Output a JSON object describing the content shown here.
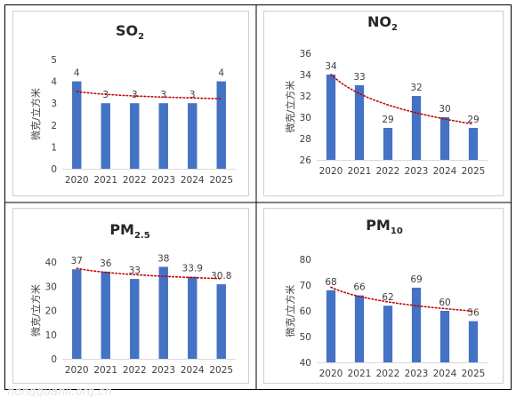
{
  "panels": [
    {
      "title_main": "SO",
      "title_sub": "2",
      "ylabel": "微克/立方米"
    },
    {
      "title_main": "NO",
      "title_sub": "2",
      "ylabel": "微克/立方米"
    },
    {
      "title_main": "PM",
      "title_sub": "2.5",
      "ylabel": "微克/立方米"
    },
    {
      "title_main": "PM",
      "title_sub": "10",
      "ylabel": "微克/立方米"
    }
  ],
  "watermark": "hongguanli.org.cn",
  "colors": {
    "bar": "#4472C4",
    "trend": "#C00000",
    "grid": "#D9D9D9",
    "text": "#404040",
    "frame": "#000000"
  },
  "chart_data": [
    {
      "type": "bar",
      "title": "SO2",
      "ylabel": "微克/立方米",
      "categories": [
        "2020",
        "2021",
        "2022",
        "2023",
        "2024",
        "2025"
      ],
      "values": [
        4,
        3,
        3,
        3,
        3,
        4
      ],
      "labels": [
        "4",
        "3",
        "3",
        "3",
        "3",
        "4"
      ],
      "ylim": [
        0,
        5
      ],
      "yticks": [
        0,
        1,
        2,
        3,
        4,
        5
      ],
      "trendline": "logarithmic",
      "grid": false
    },
    {
      "type": "bar",
      "title": "NO2",
      "ylabel": "微克/立方米",
      "categories": [
        "2020",
        "2021",
        "2022",
        "2023",
        "2024",
        "2025"
      ],
      "values": [
        34,
        33,
        29,
        32,
        30,
        29
      ],
      "labels": [
        "34",
        "33",
        "29",
        "32",
        "30",
        "29"
      ],
      "ylim": [
        26,
        36
      ],
      "yticks": [
        26,
        28,
        30,
        32,
        34,
        36
      ],
      "trendline": "logarithmic",
      "grid": false
    },
    {
      "type": "bar",
      "title": "PM2.5",
      "ylabel": "微克/立方米",
      "categories": [
        "2020",
        "2021",
        "2022",
        "2023",
        "2024",
        "2025"
      ],
      "values": [
        37,
        36,
        33,
        38,
        33.9,
        30.8
      ],
      "labels": [
        "37",
        "36",
        "33",
        "38",
        "33.9",
        "30.8"
      ],
      "ylim": [
        0,
        40
      ],
      "yticks": [
        0,
        10,
        20,
        30,
        40
      ],
      "trendline": "logarithmic",
      "grid": false
    },
    {
      "type": "bar",
      "title": "PM10",
      "ylabel": "微克/立方米",
      "categories": [
        "2020",
        "2021",
        "2022",
        "2023",
        "2024",
        "2025"
      ],
      "values": [
        68,
        66,
        62,
        69,
        60,
        56
      ],
      "labels": [
        "68",
        "66",
        "62",
        "69",
        "60",
        "56"
      ],
      "ylim": [
        40,
        80
      ],
      "yticks": [
        40,
        50,
        60,
        70,
        80
      ],
      "trendline": "logarithmic",
      "grid": false
    }
  ]
}
